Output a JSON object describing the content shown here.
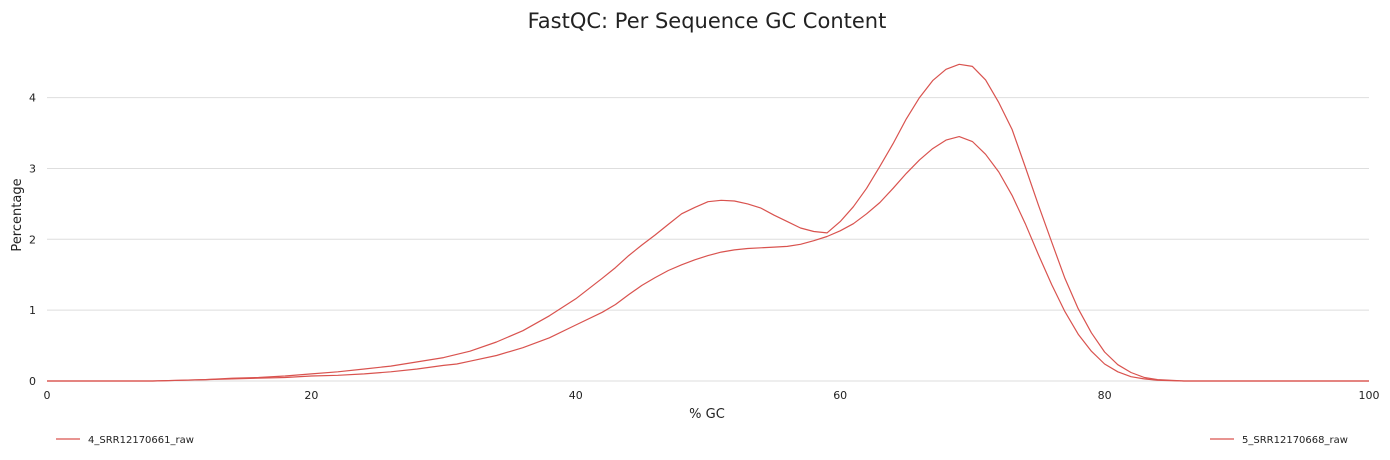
{
  "chart_data": {
    "type": "line",
    "title": "FastQC: Per Sequence GC Content",
    "xlabel": "% GC",
    "ylabel": "Percentage",
    "xlim": [
      0,
      100
    ],
    "ylim": [
      0,
      4.7
    ],
    "x_ticks": [
      0,
      20,
      40,
      60,
      80,
      100
    ],
    "y_ticks": [
      0,
      1,
      2,
      3,
      4
    ],
    "grid": "horizontal",
    "legend": "bottom",
    "series": [
      {
        "name": "4_SRR12170661_raw",
        "color": "#d9534f",
        "points": [
          [
            0,
            0
          ],
          [
            8,
            0
          ],
          [
            10,
            0.01
          ],
          [
            12,
            0.02
          ],
          [
            14,
            0.03
          ],
          [
            16,
            0.04
          ],
          [
            18,
            0.05
          ],
          [
            20,
            0.07
          ],
          [
            22,
            0.08
          ],
          [
            24,
            0.1
          ],
          [
            26,
            0.13
          ],
          [
            28,
            0.17
          ],
          [
            30,
            0.22
          ],
          [
            31,
            0.24
          ],
          [
            32,
            0.28
          ],
          [
            34,
            0.36
          ],
          [
            36,
            0.47
          ],
          [
            38,
            0.61
          ],
          [
            40,
            0.79
          ],
          [
            42,
            0.97
          ],
          [
            43,
            1.08
          ],
          [
            44,
            1.22
          ],
          [
            45,
            1.35
          ],
          [
            46,
            1.46
          ],
          [
            47,
            1.56
          ],
          [
            48,
            1.64
          ],
          [
            49,
            1.71
          ],
          [
            50,
            1.77
          ],
          [
            51,
            1.82
          ],
          [
            52,
            1.85
          ],
          [
            53,
            1.87
          ],
          [
            54,
            1.88
          ],
          [
            55,
            1.89
          ],
          [
            56,
            1.9
          ],
          [
            57,
            1.93
          ],
          [
            58,
            1.98
          ],
          [
            59,
            2.04
          ],
          [
            60,
            2.12
          ],
          [
            61,
            2.22
          ],
          [
            62,
            2.36
          ],
          [
            63,
            2.52
          ],
          [
            64,
            2.72
          ],
          [
            65,
            2.93
          ],
          [
            66,
            3.12
          ],
          [
            67,
            3.28
          ],
          [
            68,
            3.4
          ],
          [
            69,
            3.45
          ],
          [
            70,
            3.38
          ],
          [
            71,
            3.2
          ],
          [
            72,
            2.95
          ],
          [
            73,
            2.62
          ],
          [
            74,
            2.22
          ],
          [
            75,
            1.78
          ],
          [
            76,
            1.36
          ],
          [
            77,
            0.98
          ],
          [
            78,
            0.66
          ],
          [
            79,
            0.42
          ],
          [
            80,
            0.24
          ],
          [
            81,
            0.13
          ],
          [
            82,
            0.06
          ],
          [
            83,
            0.03
          ],
          [
            84,
            0.01
          ],
          [
            86,
            0
          ],
          [
            100,
            0
          ]
        ]
      },
      {
        "name": "5_SRR12170668_raw",
        "color": "#d9534f",
        "points": [
          [
            0,
            0
          ],
          [
            8,
            0
          ],
          [
            10,
            0.01
          ],
          [
            12,
            0.02
          ],
          [
            14,
            0.04
          ],
          [
            16,
            0.05
          ],
          [
            18,
            0.07
          ],
          [
            20,
            0.1
          ],
          [
            22,
            0.13
          ],
          [
            24,
            0.17
          ],
          [
            26,
            0.21
          ],
          [
            28,
            0.27
          ],
          [
            30,
            0.33
          ],
          [
            32,
            0.42
          ],
          [
            34,
            0.55
          ],
          [
            36,
            0.71
          ],
          [
            38,
            0.92
          ],
          [
            40,
            1.16
          ],
          [
            42,
            1.45
          ],
          [
            43,
            1.6
          ],
          [
            44,
            1.77
          ],
          [
            45,
            1.92
          ],
          [
            46,
            2.06
          ],
          [
            47,
            2.21
          ],
          [
            48,
            2.36
          ],
          [
            49,
            2.45
          ],
          [
            50,
            2.53
          ],
          [
            51,
            2.55
          ],
          [
            52,
            2.54
          ],
          [
            53,
            2.5
          ],
          [
            54,
            2.44
          ],
          [
            55,
            2.34
          ],
          [
            56,
            2.25
          ],
          [
            57,
            2.16
          ],
          [
            58,
            2.11
          ],
          [
            59,
            2.09
          ],
          [
            60,
            2.25
          ],
          [
            61,
            2.46
          ],
          [
            62,
            2.72
          ],
          [
            63,
            3.03
          ],
          [
            64,
            3.35
          ],
          [
            65,
            3.7
          ],
          [
            66,
            4.0
          ],
          [
            67,
            4.24
          ],
          [
            68,
            4.4
          ],
          [
            69,
            4.47
          ],
          [
            70,
            4.44
          ],
          [
            71,
            4.25
          ],
          [
            72,
            3.93
          ],
          [
            73,
            3.55
          ],
          [
            74,
            3.02
          ],
          [
            75,
            2.48
          ],
          [
            76,
            1.96
          ],
          [
            77,
            1.45
          ],
          [
            78,
            1.02
          ],
          [
            79,
            0.68
          ],
          [
            80,
            0.41
          ],
          [
            81,
            0.23
          ],
          [
            82,
            0.12
          ],
          [
            83,
            0.05
          ],
          [
            84,
            0.02
          ],
          [
            86,
            0
          ],
          [
            100,
            0
          ]
        ]
      }
    ]
  }
}
